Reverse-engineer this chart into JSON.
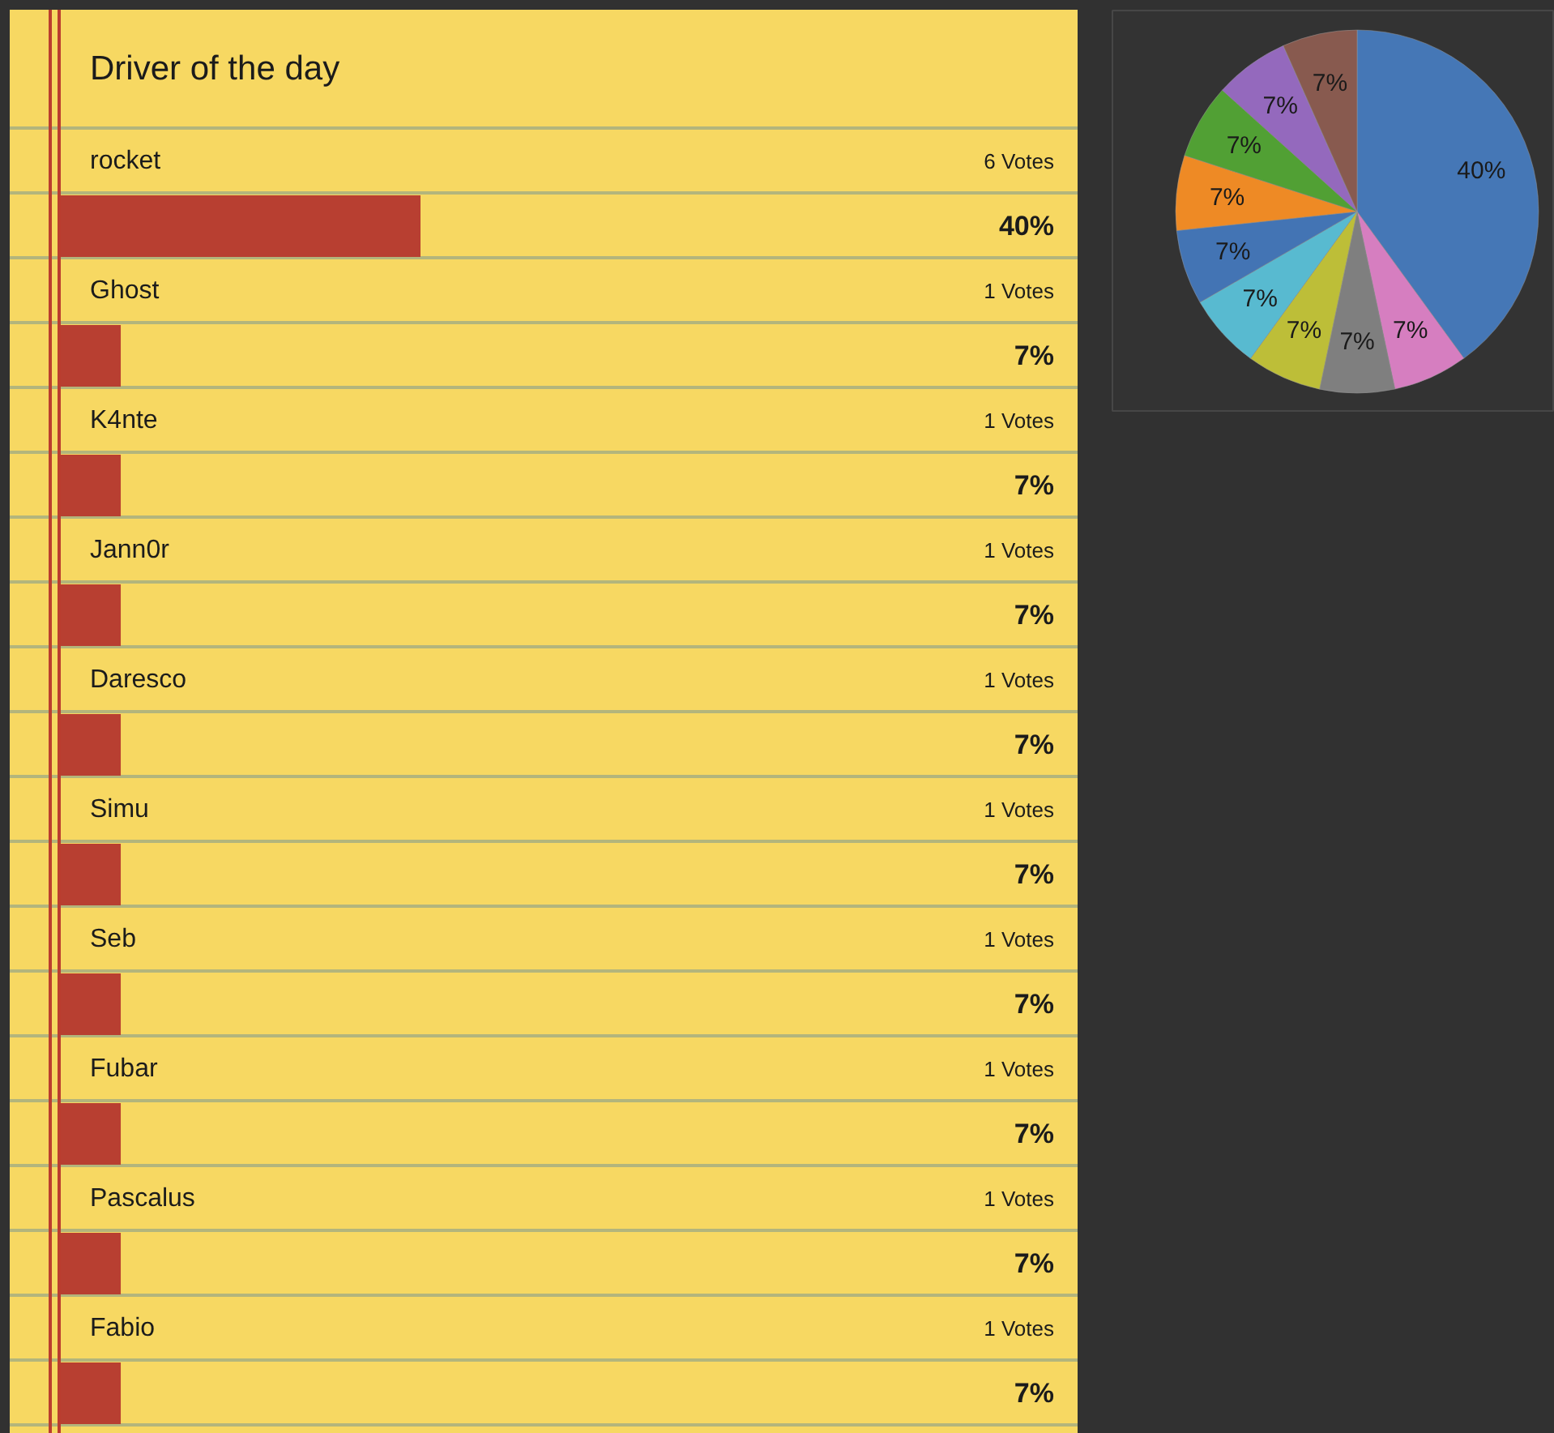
{
  "chart_data": [
    {
      "type": "bar",
      "orientation": "horizontal",
      "title": "Driver of the day",
      "categories": [
        "rocket",
        "Ghost",
        "K4nte",
        "Jann0r",
        "Daresco",
        "Simu",
        "Seb",
        "Fubar",
        "Pascalus",
        "Fabio"
      ],
      "values": [
        40,
        6.67,
        6.67,
        6.67,
        6.67,
        6.67,
        6.67,
        6.67,
        6.67,
        6.67
      ],
      "value_labels": [
        "40%",
        "7%",
        "7%",
        "7%",
        "7%",
        "7%",
        "7%",
        "7%",
        "7%",
        "7%"
      ],
      "color": "#b83f31",
      "tick_labels": false,
      "annotations": [
        "6 Votes",
        "1 Votes",
        "1 Votes",
        "1 Votes",
        "1 Votes",
        "1 Votes",
        "1 Votes",
        "1 Votes",
        "1 Votes",
        "1 Votes"
      ]
    },
    {
      "type": "pie",
      "categories": [
        null,
        null,
        null,
        null,
        null,
        null,
        null,
        null,
        null,
        null
      ],
      "values": [
        40,
        6.67,
        6.67,
        6.67,
        6.67,
        6.67,
        6.67,
        6.67,
        6.67,
        6.67
      ],
      "value_labels": [
        "40%",
        "7%",
        "7%",
        "7%",
        "7%",
        "7%",
        "7%",
        "7%",
        "7%",
        "7%"
      ],
      "colors": [
        "#4577b6",
        "#d67ec0",
        "#7f7f7f",
        "#bdbe38",
        "#58bad0",
        "#4374b4",
        "#ee8a25",
        "#51a034",
        "#9469bd",
        "#885a4f"
      ]
    }
  ]
}
